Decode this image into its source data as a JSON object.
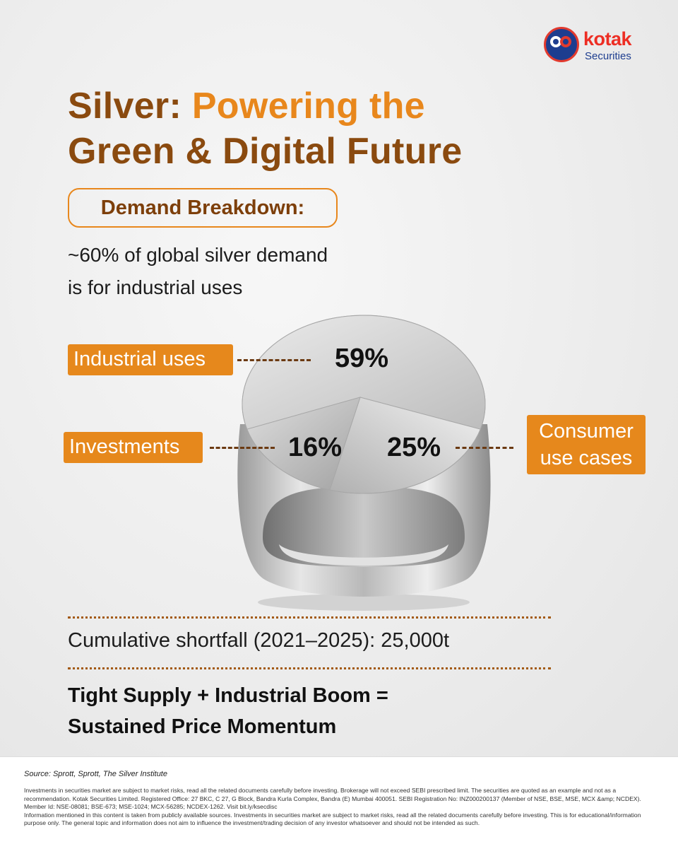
{
  "brand": {
    "name": "kotak",
    "sub": "Securities",
    "colors": {
      "red": "#ed2e24",
      "navy": "#1d3d8f"
    }
  },
  "title": {
    "part1": "Silver: ",
    "part2": "Powering the",
    "part3": "Green & Digital",
    "part4": " Future"
  },
  "demand_label": "Demand Breakdown:",
  "subtext": {
    "line1": "~60% of global silver demand",
    "line2": "is for industrial uses"
  },
  "chart_data": {
    "type": "pie",
    "categories": [
      "Industrial uses",
      "Investments",
      "Consumer use cases"
    ],
    "values": [
      59,
      16,
      25
    ],
    "labels": [
      "59%",
      "16%",
      "25%"
    ],
    "category_lines": {
      "consumer_line1": "Consumer",
      "consumer_line2": "use cases"
    },
    "colors": {
      "tag": "#e6881c",
      "silver": "#c8c8c8"
    }
  },
  "shortfall": "Cumulative shortfall (2021–2025): 25,000t",
  "conclusion": {
    "line1": "Tight Supply + Industrial Boom =",
    "line2": "Sustained Price Momentum"
  },
  "footer": {
    "source": "Source: Sprott, Sprott, The Silver Institute",
    "disclaimer1": "Investments in securities market are subject to market risks, read all the related documents carefully before investing. Brokerage will not exceed SEBI prescribed limit. The securities are quoted as an example and not as a recommendation. Kotak Securities Limited. Registered Office: 27 BKC, C 27, G Block, Bandra Kurla Complex, Bandra (E) Mumbai 400051. SEBI Registration No: INZ000200137 (Member of NSE, BSE, MSE, MCX &amp; NCDEX). Member Id: NSE-08081; BSE-673; MSE-1024; MCX-56285; NCDEX-1262. Visit bit.ly/ksecdisc",
    "disclaimer2": "Information mentioned in this content is taken from publicly available sources. Investments in securities market are subject to market risks, read all the related documents carefully before investing. This is for educational/information purpose only. The general topic and information does not aim to influence the investment/trading decision of any investor whatsoever and should not be intended as such."
  }
}
